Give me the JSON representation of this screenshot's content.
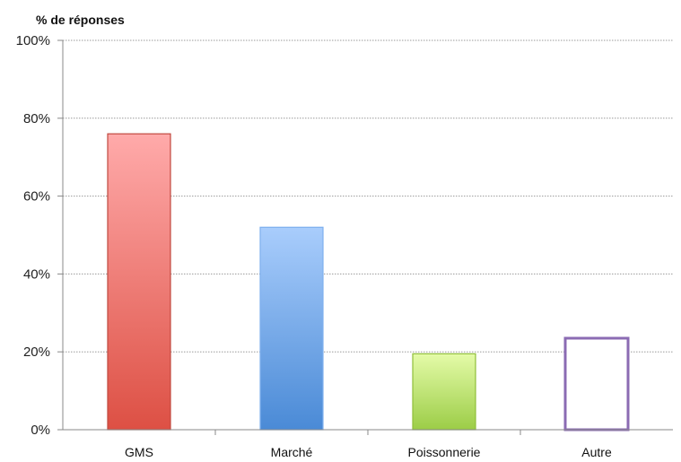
{
  "chart_data": {
    "type": "bar",
    "ylabel": "% de réponses",
    "xlabel": "",
    "categories": [
      "GMS",
      "Marché",
      "Poissonnerie",
      "Autre"
    ],
    "values": [
      76,
      52,
      19.5,
      23.5
    ],
    "ylim": [
      0,
      100
    ],
    "yticks": [
      0,
      20,
      40,
      60,
      80,
      100
    ],
    "ytick_labels": [
      "0%",
      "20%",
      "40%",
      "60%",
      "80%",
      "100%"
    ],
    "grid": true,
    "legend": "none",
    "bar_styles": [
      {
        "fill_top": "#ffaaaa",
        "fill_bottom": "#dd5044",
        "stroke": "#c04a40",
        "filled": true
      },
      {
        "fill_top": "#a9cdfc",
        "fill_bottom": "#4a8ad6",
        "stroke": "#7fb0ee",
        "filled": true
      },
      {
        "fill_top": "#e4fba8",
        "fill_bottom": "#9ccd47",
        "stroke": "#8fbf3a",
        "filled": true
      },
      {
        "fill_top": "#ffffff",
        "fill_bottom": "#ffffff",
        "stroke": "#8b6bb3",
        "filled": false
      }
    ]
  }
}
